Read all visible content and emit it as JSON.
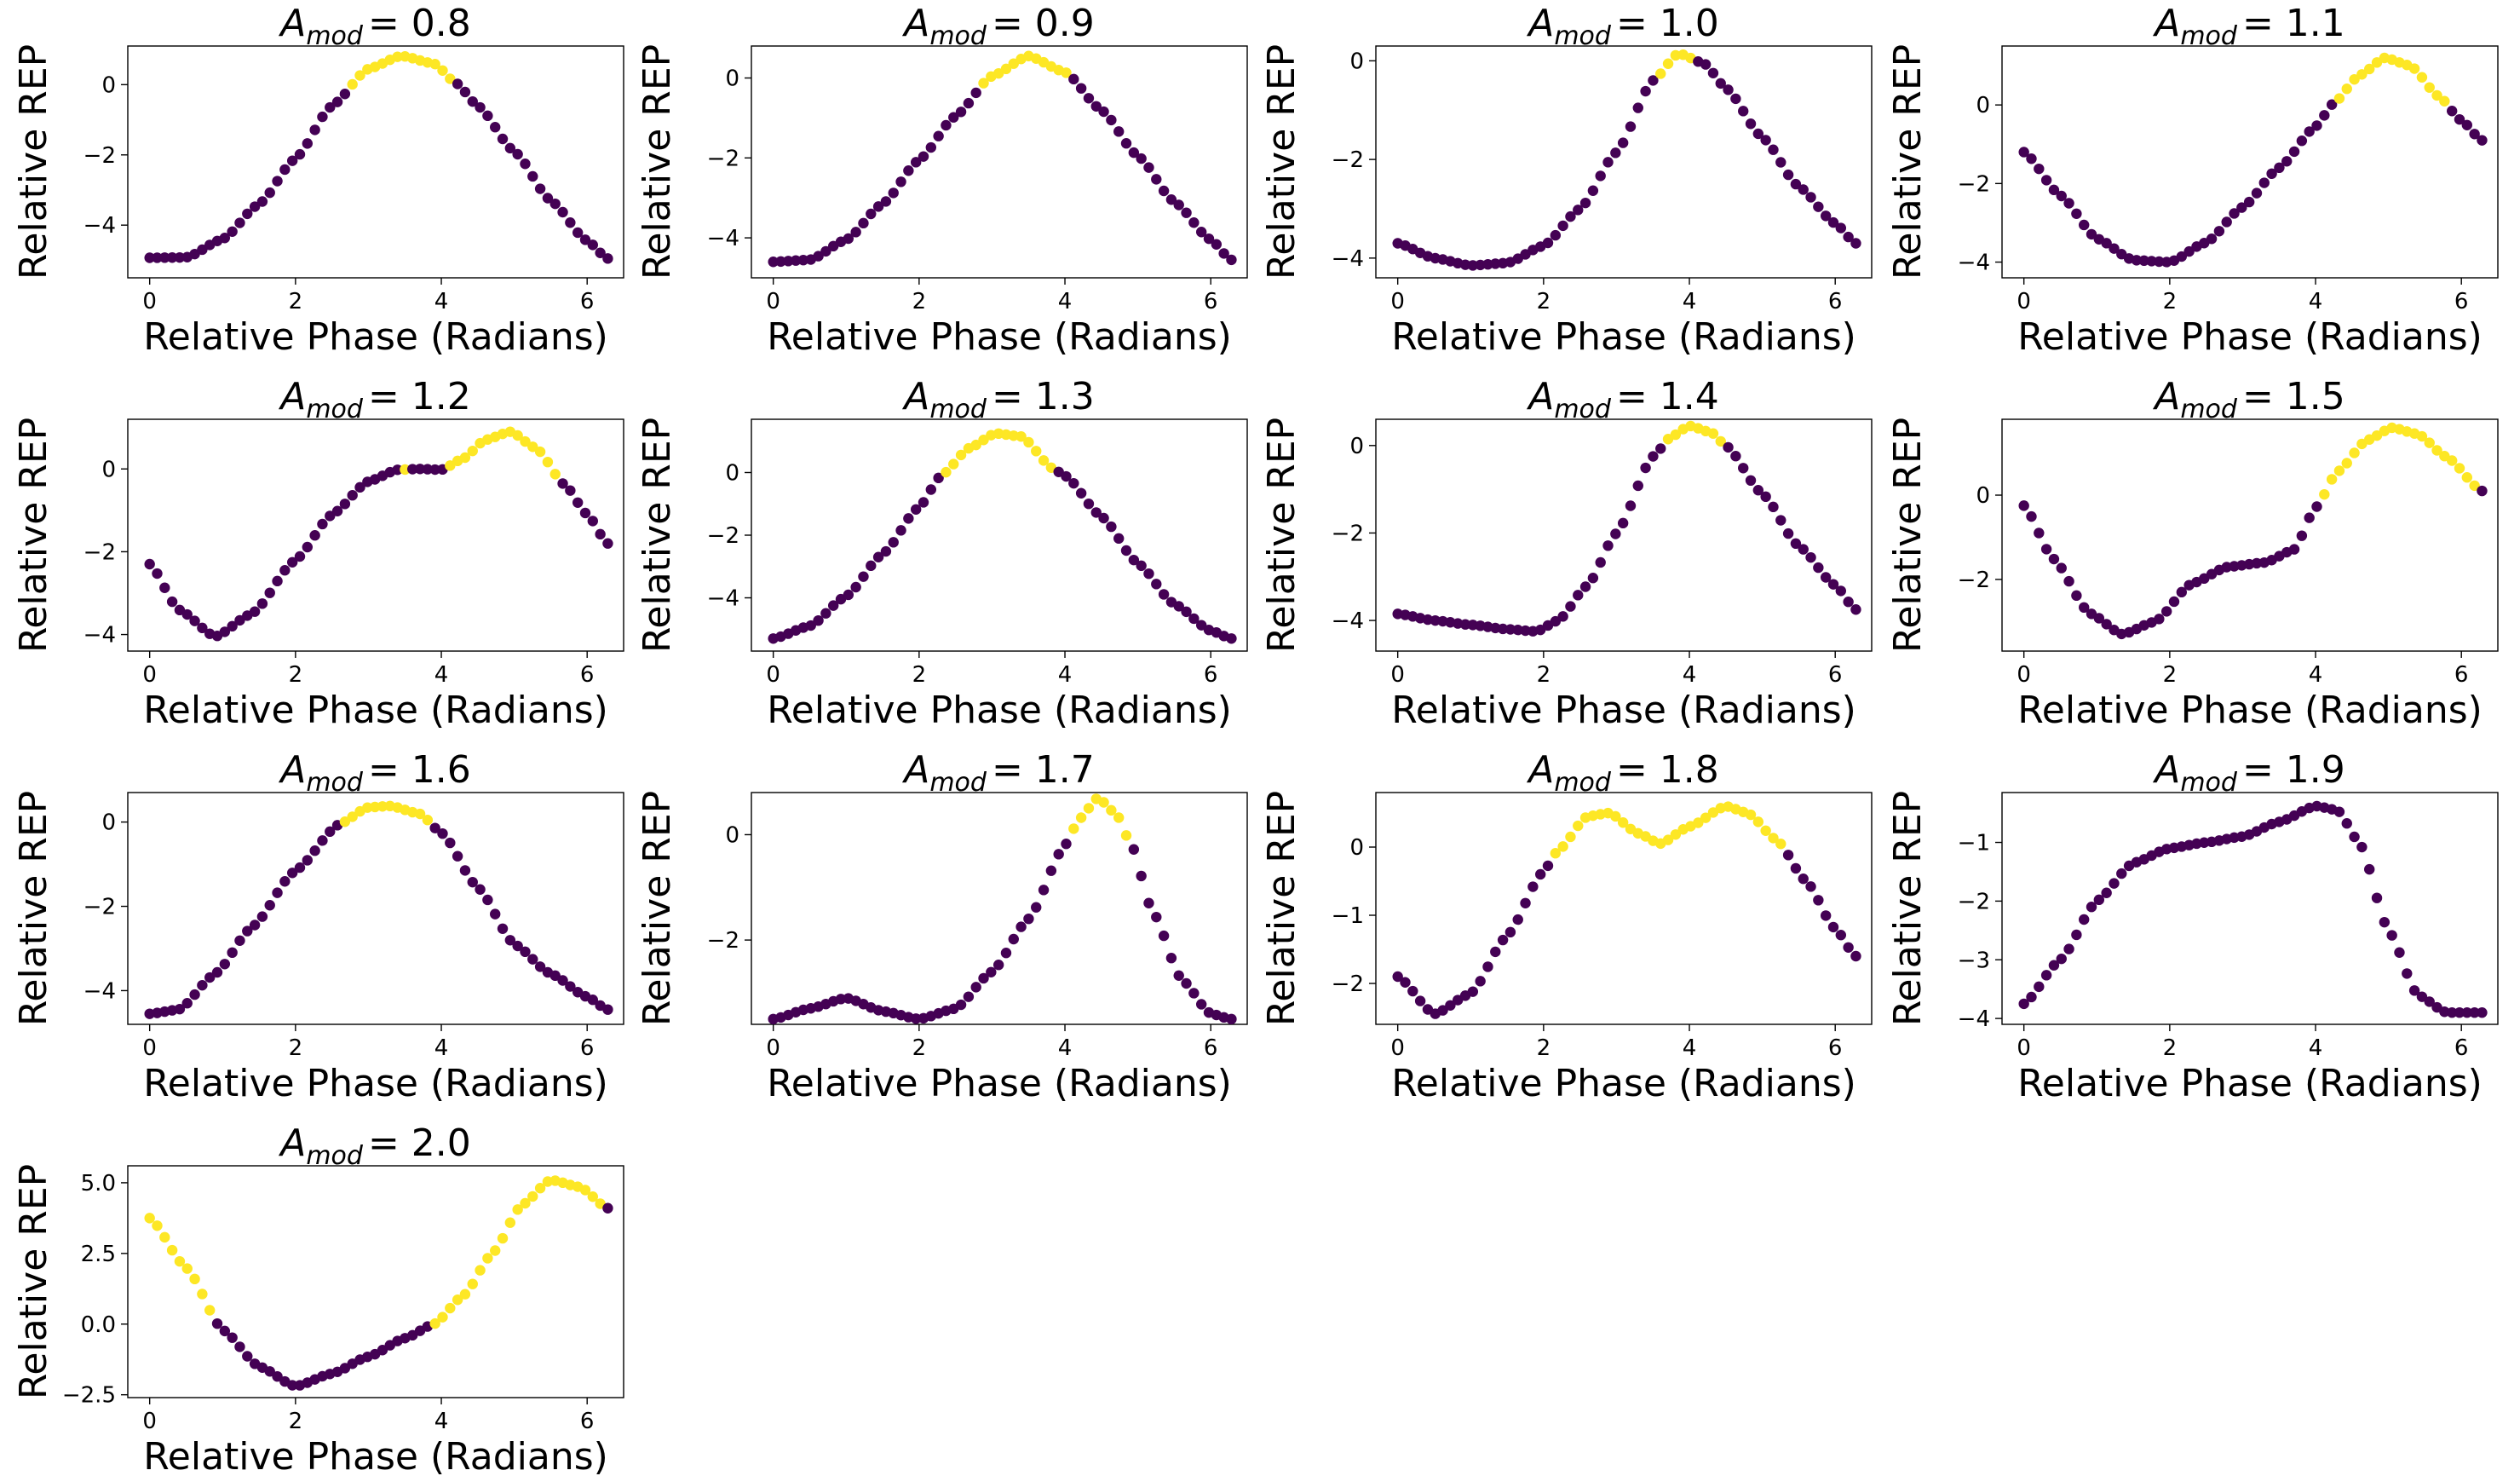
{
  "colors": {
    "low": "#440154",
    "high": "#fde725",
    "axes": "#000000"
  },
  "chart_data": [
    {
      "type": "scatter",
      "title": {
        "prefix": "A",
        "subscript": "mod",
        "value": "= 0.8"
      },
      "xlabel": "Relative Phase (Radians)",
      "ylabel": "Relative REP",
      "xlim": [
        -0.3,
        6.5
      ],
      "ylim": [
        -5.5,
        1.1
      ],
      "xticks": [
        0,
        2,
        4,
        6
      ],
      "xtick_labels": [
        "0",
        "2",
        "4",
        "6"
      ],
      "yticks": [
        -4,
        -2,
        0
      ],
      "ytick_labels": [
        "−4",
        "−2",
        "0"
      ],
      "curve": [
        [
          0,
          -4.93
        ],
        [
          0.5,
          -4.92
        ],
        [
          1.0,
          -4.4
        ],
        [
          1.5,
          -3.4
        ],
        [
          2.0,
          -2.1
        ],
        [
          2.5,
          -0.6
        ],
        [
          3.0,
          0.45
        ],
        [
          3.45,
          0.82
        ],
        [
          3.9,
          0.6
        ],
        [
          4.2,
          0.05
        ],
        [
          4.5,
          -0.6
        ],
        [
          5.0,
          -1.9
        ],
        [
          5.5,
          -3.3
        ],
        [
          6.0,
          -4.45
        ],
        [
          6.28,
          -4.95
        ]
      ],
      "highlight": [
        [
          2.7,
          4.2
        ]
      ]
    },
    {
      "type": "scatter",
      "title": {
        "prefix": "A",
        "subscript": "mod",
        "value": "= 0.9"
      },
      "xlabel": "Relative Phase (Radians)",
      "ylabel": "Relative REP",
      "xlim": [
        -0.3,
        6.5
      ],
      "ylim": [
        -5.0,
        0.8
      ],
      "xticks": [
        0,
        2,
        4,
        6
      ],
      "xtick_labels": [
        "0",
        "2",
        "4",
        "6"
      ],
      "yticks": [
        -4,
        -2,
        0
      ],
      "ytick_labels": [
        "−4",
        "−2",
        "0"
      ],
      "curve": [
        [
          0,
          -4.6
        ],
        [
          0.5,
          -4.55
        ],
        [
          1.0,
          -4.05
        ],
        [
          1.5,
          -3.15
        ],
        [
          2.0,
          -2.05
        ],
        [
          2.5,
          -0.95
        ],
        [
          3.0,
          0.05
        ],
        [
          3.5,
          0.55
        ],
        [
          4.0,
          0.15
        ],
        [
          4.5,
          -0.8
        ],
        [
          5.0,
          -1.95
        ],
        [
          5.5,
          -3.1
        ],
        [
          6.0,
          -4.05
        ],
        [
          6.28,
          -4.55
        ]
      ],
      "highlight": [
        [
          2.85,
          4.1
        ]
      ]
    },
    {
      "type": "scatter",
      "title": {
        "prefix": "A",
        "subscript": "mod",
        "value": "= 1.0"
      },
      "xlabel": "Relative Phase (Radians)",
      "ylabel": "Relative REP",
      "xlim": [
        -0.3,
        6.5
      ],
      "ylim": [
        -4.4,
        0.3
      ],
      "xticks": [
        0,
        2,
        4,
        6
      ],
      "xtick_labels": [
        "0",
        "2",
        "4",
        "6"
      ],
      "yticks": [
        -4,
        -2,
        0
      ],
      "ytick_labels": [
        "−4",
        "−2",
        "0"
      ],
      "curve": [
        [
          0,
          -3.7
        ],
        [
          0.5,
          -4.0
        ],
        [
          1.0,
          -4.15
        ],
        [
          1.5,
          -4.1
        ],
        [
          2.0,
          -3.75
        ],
        [
          2.5,
          -3.0
        ],
        [
          3.0,
          -1.85
        ],
        [
          3.5,
          -0.4
        ],
        [
          3.85,
          0.15
        ],
        [
          4.2,
          -0.05
        ],
        [
          4.5,
          -0.55
        ],
        [
          5.0,
          -1.55
        ],
        [
          5.5,
          -2.55
        ],
        [
          6.0,
          -3.3
        ],
        [
          6.28,
          -3.7
        ]
      ],
      "highlight": [
        [
          3.6,
          4.1
        ]
      ]
    },
    {
      "type": "scatter",
      "title": {
        "prefix": "A",
        "subscript": "mod",
        "value": "= 1.1"
      },
      "xlabel": "Relative Phase (Radians)",
      "ylabel": "Relative REP",
      "xlim": [
        -0.3,
        6.5
      ],
      "ylim": [
        -4.4,
        1.5
      ],
      "xticks": [
        0,
        2,
        4,
        6
      ],
      "xtick_labels": [
        "0",
        "2",
        "4",
        "6"
      ],
      "yticks": [
        -4,
        -2,
        0
      ],
      "ytick_labels": [
        "−4",
        "−2",
        "0"
      ],
      "curve": [
        [
          0,
          -1.2
        ],
        [
          0.5,
          -2.3
        ],
        [
          1.0,
          -3.4
        ],
        [
          1.5,
          -3.95
        ],
        [
          2.0,
          -4.0
        ],
        [
          2.5,
          -3.5
        ],
        [
          3.0,
          -2.6
        ],
        [
          3.5,
          -1.6
        ],
        [
          4.0,
          -0.55
        ],
        [
          4.25,
          0.05
        ],
        [
          4.6,
          0.75
        ],
        [
          4.95,
          1.2
        ],
        [
          5.3,
          1.0
        ],
        [
          5.7,
          0.2
        ],
        [
          6.0,
          -0.4
        ],
        [
          6.28,
          -0.9
        ]
      ],
      "highlight": [
        [
          4.25,
          5.85
        ]
      ]
    },
    {
      "type": "scatter",
      "title": {
        "prefix": "A",
        "subscript": "mod",
        "value": "= 1.2"
      },
      "xlabel": "Relative Phase (Radians)",
      "ylabel": "Relative REP",
      "xlim": [
        -0.3,
        6.5
      ],
      "ylim": [
        -4.4,
        1.2
      ],
      "xticks": [
        0,
        2,
        4,
        6
      ],
      "xtick_labels": [
        "0",
        "2",
        "4",
        "6"
      ],
      "yticks": [
        -4,
        -2,
        0
      ],
      "ytick_labels": [
        "−4",
        "−2",
        "0"
      ],
      "curve": [
        [
          0,
          -2.3
        ],
        [
          0.4,
          -3.4
        ],
        [
          0.9,
          -4.05
        ],
        [
          1.4,
          -3.5
        ],
        [
          2.0,
          -2.2
        ],
        [
          2.5,
          -1.1
        ],
        [
          3.0,
          -0.3
        ],
        [
          3.4,
          -0.02
        ],
        [
          3.7,
          0.0
        ],
        [
          4.0,
          -0.02
        ],
        [
          4.3,
          0.25
        ],
        [
          4.6,
          0.7
        ],
        [
          4.95,
          0.9
        ],
        [
          5.3,
          0.5
        ],
        [
          5.7,
          -0.4
        ],
        [
          6.0,
          -1.1
        ],
        [
          6.28,
          -1.8
        ]
      ],
      "highlight": [
        [
          3.4,
          3.55
        ],
        [
          4.1,
          5.6
        ]
      ]
    },
    {
      "type": "scatter",
      "title": {
        "prefix": "A",
        "subscript": "mod",
        "value": "= 1.3"
      },
      "xlabel": "Relative Phase (Radians)",
      "ylabel": "Relative REP",
      "xlim": [
        -0.3,
        6.5
      ],
      "ylim": [
        -5.7,
        1.7
      ],
      "xticks": [
        0,
        2,
        4,
        6
      ],
      "xtick_labels": [
        "0",
        "2",
        "4",
        "6"
      ],
      "yticks": [
        -4,
        -2,
        0
      ],
      "ytick_labels": [
        "−4",
        "−2",
        "0"
      ],
      "curve": [
        [
          0,
          -5.3
        ],
        [
          0.5,
          -4.9
        ],
        [
          1.0,
          -3.95
        ],
        [
          1.5,
          -2.6
        ],
        [
          2.0,
          -1.1
        ],
        [
          2.3,
          -0.1
        ],
        [
          2.7,
          0.8
        ],
        [
          3.05,
          1.25
        ],
        [
          3.4,
          1.15
        ],
        [
          3.85,
          0.1
        ],
        [
          4.0,
          -0.1
        ],
        [
          4.5,
          -1.4
        ],
        [
          5.0,
          -2.9
        ],
        [
          5.5,
          -4.2
        ],
        [
          6.0,
          -5.05
        ],
        [
          6.28,
          -5.3
        ]
      ],
      "highlight": [
        [
          2.3,
          3.85
        ]
      ]
    },
    {
      "type": "scatter",
      "title": {
        "prefix": "A",
        "subscript": "mod",
        "value": "= 1.4"
      },
      "xlabel": "Relative Phase (Radians)",
      "ylabel": "Relative REP",
      "xlim": [
        -0.3,
        6.5
      ],
      "ylim": [
        -4.7,
        0.6
      ],
      "xticks": [
        0,
        2,
        4,
        6
      ],
      "xtick_labels": [
        "0",
        "2",
        "4",
        "6"
      ],
      "yticks": [
        -4,
        -2,
        0
      ],
      "ytick_labels": [
        "−4",
        "−2",
        "0"
      ],
      "curve": [
        [
          0,
          -3.85
        ],
        [
          0.5,
          -4.0
        ],
        [
          1.0,
          -4.1
        ],
        [
          1.5,
          -4.2
        ],
        [
          1.9,
          -4.25
        ],
        [
          2.2,
          -4.0
        ],
        [
          2.6,
          -3.2
        ],
        [
          3.0,
          -2.0
        ],
        [
          3.5,
          -0.25
        ],
        [
          3.75,
          0.2
        ],
        [
          4.0,
          0.45
        ],
        [
          4.3,
          0.3
        ],
        [
          4.5,
          0.0
        ],
        [
          5.0,
          -1.1
        ],
        [
          5.5,
          -2.3
        ],
        [
          6.0,
          -3.2
        ],
        [
          6.28,
          -3.75
        ]
      ],
      "highlight": [
        [
          3.65,
          4.5
        ]
      ]
    },
    {
      "type": "scatter",
      "title": {
        "prefix": "A",
        "subscript": "mod",
        "value": "= 1.5"
      },
      "xlabel": "Relative Phase (Radians)",
      "ylabel": "Relative REP",
      "xlim": [
        -0.3,
        6.5
      ],
      "ylim": [
        -3.7,
        1.8
      ],
      "xticks": [
        0,
        2,
        4,
        6
      ],
      "xtick_labels": [
        "0",
        "2",
        "4",
        "6"
      ],
      "yticks": [
        -2,
        0
      ],
      "ytick_labels": [
        "−2",
        "0"
      ],
      "curve": [
        [
          0,
          -0.25
        ],
        [
          0.4,
          -1.5
        ],
        [
          0.9,
          -2.8
        ],
        [
          1.35,
          -3.3
        ],
        [
          1.8,
          -3.0
        ],
        [
          2.3,
          -2.1
        ],
        [
          2.8,
          -1.7
        ],
        [
          3.3,
          -1.6
        ],
        [
          3.7,
          -1.3
        ],
        [
          4.0,
          -0.3
        ],
        [
          4.3,
          0.55
        ],
        [
          4.7,
          1.3
        ],
        [
          5.05,
          1.6
        ],
        [
          5.4,
          1.45
        ],
        [
          5.8,
          0.9
        ],
        [
          6.28,
          0.1
        ]
      ],
      "highlight": [
        [
          4.05,
          6.28
        ]
      ]
    },
    {
      "type": "scatter",
      "title": {
        "prefix": "A",
        "subscript": "mod",
        "value": "= 1.6"
      },
      "xlabel": "Relative Phase (Radians)",
      "ylabel": "Relative REP",
      "xlim": [
        -0.3,
        6.5
      ],
      "ylim": [
        -4.8,
        0.7
      ],
      "xticks": [
        0,
        2,
        4,
        6
      ],
      "xtick_labels": [
        "0",
        "2",
        "4",
        "6"
      ],
      "yticks": [
        -4,
        -2,
        0
      ],
      "ytick_labels": [
        "−4",
        "−2",
        "0"
      ],
      "curve": [
        [
          0,
          -4.55
        ],
        [
          0.4,
          -4.45
        ],
        [
          0.9,
          -3.6
        ],
        [
          1.4,
          -2.5
        ],
        [
          2.0,
          -1.15
        ],
        [
          2.6,
          -0.05
        ],
        [
          3.0,
          0.35
        ],
        [
          3.3,
          0.38
        ],
        [
          3.7,
          0.2
        ],
        [
          4.0,
          -0.25
        ],
        [
          4.5,
          -1.55
        ],
        [
          5.0,
          -2.9
        ],
        [
          5.5,
          -3.6
        ],
        [
          6.0,
          -4.15
        ],
        [
          6.28,
          -4.45
        ]
      ],
      "highlight": [
        [
          2.65,
          3.9
        ]
      ]
    },
    {
      "type": "scatter",
      "title": {
        "prefix": "A",
        "subscript": "mod",
        "value": "= 1.7"
      },
      "xlabel": "Relative Phase (Radians)",
      "ylabel": "Relative REP",
      "xlim": [
        -0.3,
        6.5
      ],
      "ylim": [
        -3.6,
        0.8
      ],
      "xticks": [
        0,
        2,
        4,
        6
      ],
      "xtick_labels": [
        "0",
        "2",
        "4",
        "6"
      ],
      "yticks": [
        -2,
        0
      ],
      "ytick_labels": [
        "−2",
        "0"
      ],
      "curve": [
        [
          0,
          -3.5
        ],
        [
          0.5,
          -3.3
        ],
        [
          1.0,
          -3.1
        ],
        [
          1.5,
          -3.35
        ],
        [
          2.0,
          -3.5
        ],
        [
          2.5,
          -3.3
        ],
        [
          3.0,
          -2.6
        ],
        [
          3.5,
          -1.6
        ],
        [
          4.0,
          -0.2
        ],
        [
          4.2,
          0.3
        ],
        [
          4.45,
          0.7
        ],
        [
          4.7,
          0.4
        ],
        [
          4.9,
          -0.15
        ],
        [
          5.2,
          -1.45
        ],
        [
          5.6,
          -2.75
        ],
        [
          6.0,
          -3.4
        ],
        [
          6.28,
          -3.5
        ]
      ],
      "highlight": [
        [
          4.05,
          4.85
        ]
      ]
    },
    {
      "type": "scatter",
      "title": {
        "prefix": "A",
        "subscript": "mod",
        "value": "= 1.8"
      },
      "xlabel": "Relative Phase (Radians)",
      "ylabel": "Relative REP",
      "xlim": [
        -0.3,
        6.5
      ],
      "ylim": [
        -2.6,
        0.8
      ],
      "xticks": [
        0,
        2,
        4,
        6
      ],
      "xtick_labels": [
        "0",
        "2",
        "4",
        "6"
      ],
      "yticks": [
        -2,
        -1,
        0
      ],
      "ytick_labels": [
        "−2",
        "−1",
        "0"
      ],
      "curve": [
        [
          0,
          -1.9
        ],
        [
          0.5,
          -2.45
        ],
        [
          1.0,
          -2.15
        ],
        [
          1.5,
          -1.3
        ],
        [
          2.0,
          -0.35
        ],
        [
          2.2,
          -0.05
        ],
        [
          2.6,
          0.45
        ],
        [
          2.9,
          0.5
        ],
        [
          3.3,
          0.2
        ],
        [
          3.6,
          0.05
        ],
        [
          4.0,
          0.3
        ],
        [
          4.5,
          0.6
        ],
        [
          4.8,
          0.5
        ],
        [
          5.2,
          0.1
        ],
        [
          5.6,
          -0.5
        ],
        [
          6.0,
          -1.2
        ],
        [
          6.28,
          -1.6
        ]
      ],
      "highlight": [
        [
          2.15,
          5.3
        ]
      ]
    },
    {
      "type": "scatter",
      "title": {
        "prefix": "A",
        "subscript": "mod",
        "value": "= 1.9"
      },
      "xlabel": "Relative Phase (Radians)",
      "ylabel": "Relative REP",
      "xlim": [
        -0.3,
        6.5
      ],
      "ylim": [
        -4.1,
        -0.15
      ],
      "xticks": [
        0,
        2,
        4,
        6
      ],
      "xtick_labels": [
        "0",
        "2",
        "4",
        "6"
      ],
      "yticks": [
        -4,
        -3,
        -2,
        -1
      ],
      "ytick_labels": [
        "−4",
        "−3",
        "−2",
        "−1"
      ],
      "curve": [
        [
          0,
          -3.75
        ],
        [
          0.5,
          -3.0
        ],
        [
          1.0,
          -2.0
        ],
        [
          1.5,
          -1.35
        ],
        [
          2.0,
          -1.1
        ],
        [
          2.5,
          -1.0
        ],
        [
          3.0,
          -0.9
        ],
        [
          3.5,
          -0.65
        ],
        [
          4.0,
          -0.38
        ],
        [
          4.3,
          -0.45
        ],
        [
          4.6,
          -1.0
        ],
        [
          5.0,
          -2.5
        ],
        [
          5.4,
          -3.6
        ],
        [
          5.8,
          -3.9
        ],
        [
          6.28,
          -3.9
        ]
      ],
      "highlight": []
    },
    {
      "type": "scatter",
      "title": {
        "prefix": "A",
        "subscript": "mod",
        "value": "= 2.0"
      },
      "xlabel": "Relative Phase (Radians)",
      "ylabel": "Relative REP",
      "xlim": [
        -0.3,
        6.5
      ],
      "ylim": [
        -2.6,
        5.6
      ],
      "xticks": [
        0,
        2,
        4,
        6
      ],
      "xtick_labels": [
        "0",
        "2",
        "4",
        "6"
      ],
      "yticks": [
        -2.5,
        0.0,
        2.5,
        5.0
      ],
      "ytick_labels": [
        "−2.5",
        "0.0",
        "2.5",
        "5.0"
      ],
      "curve": [
        [
          0,
          3.75
        ],
        [
          0.5,
          2.0
        ],
        [
          1.0,
          -0.2
        ],
        [
          1.5,
          -1.5
        ],
        [
          2.0,
          -2.2
        ],
        [
          2.5,
          -1.75
        ],
        [
          3.0,
          -1.15
        ],
        [
          3.5,
          -0.5
        ],
        [
          3.9,
          0.0
        ],
        [
          4.3,
          1.0
        ],
        [
          4.7,
          2.5
        ],
        [
          5.1,
          4.2
        ],
        [
          5.5,
          5.1
        ],
        [
          5.9,
          4.85
        ],
        [
          6.28,
          4.1
        ]
      ],
      "highlight": [
        [
          0.0,
          0.85
        ],
        [
          3.9,
          6.28
        ]
      ]
    }
  ]
}
